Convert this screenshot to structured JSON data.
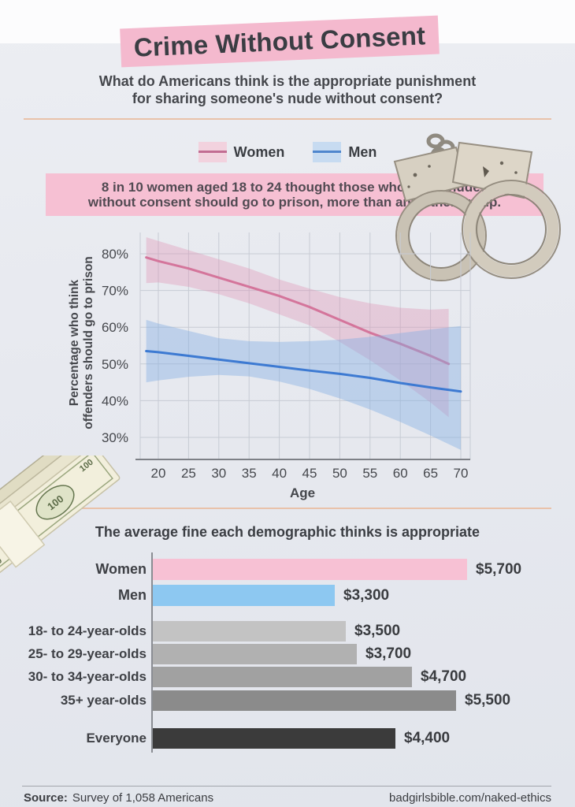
{
  "page": {
    "title": "Crime Without Consent",
    "subtitle_line1": "What do Americans think is the appropriate punishment",
    "subtitle_line2": "for sharing someone's nude without consent?",
    "callout_line1": "8 in 10 women aged 18 to 24 thought those who share nudes",
    "callout_line2": "without consent should go to prison, more than any other group.",
    "footer": {
      "source_label": "Source:",
      "source_text": "Survey of 1,058 Americans",
      "site": "badgirlsbible.com/naked-ethics"
    }
  },
  "colors": {
    "banner_pink": "#f4b9ce",
    "callout_pink": "#f6c0d3",
    "divider_peach": "#e9c2aa",
    "women_line": "#d4759b",
    "men_line": "#3d7ad2",
    "grid": "#c7cbd4",
    "axis": "#7d8086",
    "dark_text": "#3b3e43"
  },
  "legend": {
    "items": [
      {
        "label": "Women",
        "band": "#f2d2de",
        "line": "#c26d92"
      },
      {
        "label": "Men",
        "band": "#c7dbf1",
        "line": "#4f86cd"
      }
    ]
  },
  "chart_data": [
    {
      "type": "line",
      "title": "",
      "xlabel": "Age",
      "ylabel": "Percentage who think offenders should go to prison",
      "ylabel_lines": [
        "Percentage who think",
        "offenders should go to prison"
      ],
      "xlim": [
        17,
        72
      ],
      "ylim": [
        24,
        86
      ],
      "grid": true,
      "legend_position": "top",
      "xticks": [
        20,
        25,
        30,
        35,
        40,
        45,
        50,
        55,
        60,
        65,
        70
      ],
      "xtick_labels": [
        "20",
        "25",
        "30",
        "35",
        "40",
        "45",
        "50",
        "55",
        "60",
        "65",
        "70"
      ],
      "yticks": [
        30,
        40,
        50,
        60,
        70,
        80
      ],
      "ytick_labels": [
        "30%",
        "40%",
        "50%",
        "60%",
        "70%",
        "80%"
      ],
      "series": [
        {
          "name": "Women",
          "color": "#d4759b",
          "band_color": "rgba(224,144,177,0.35)",
          "x": [
            18,
            20,
            25,
            30,
            35,
            40,
            45,
            50,
            55,
            60,
            65,
            68
          ],
          "y": [
            79,
            78,
            76,
            73.5,
            71,
            68.5,
            65.5,
            62,
            58.5,
            55.5,
            52.2,
            50
          ],
          "band_upper": [
            84.5,
            83.5,
            81,
            78.5,
            76,
            73,
            70.5,
            68.2,
            66.5,
            65.3,
            64.8,
            65
          ],
          "band_lower": [
            72,
            72.2,
            71,
            69,
            66.5,
            63.5,
            60.5,
            56,
            51,
            45.5,
            39.5,
            35.5
          ]
        },
        {
          "name": "Men",
          "color": "#3d7ad2",
          "band_color": "rgba(130,175,227,0.42)",
          "x": [
            18,
            20,
            25,
            30,
            35,
            40,
            45,
            50,
            55,
            60,
            65,
            70
          ],
          "y": [
            53.5,
            53.2,
            52.2,
            51.2,
            50.2,
            49.2,
            48.2,
            47.3,
            46.2,
            44.8,
            43.6,
            42.5
          ],
          "band_upper": [
            62,
            61,
            59,
            57,
            56.2,
            56,
            56.2,
            56.6,
            57.4,
            58.4,
            59.4,
            60.3
          ],
          "band_lower": [
            45,
            45.5,
            46.5,
            47,
            46.6,
            45.2,
            43.2,
            40.6,
            37.6,
            34.2,
            30.5,
            26.6
          ]
        }
      ]
    },
    {
      "type": "bar",
      "title": "The average fine each demographic thinks is appropriate",
      "orientation": "horizontal",
      "categories": [
        "Women",
        "Men",
        "18- to 24-year-olds",
        "25- to 29-year-olds",
        "30- to 34-year-olds",
        "35+ year-olds",
        "Everyone"
      ],
      "values": [
        5700,
        3300,
        3500,
        3700,
        4700,
        5500,
        4400
      ],
      "value_labels": [
        "$5,700",
        "$3,300",
        "$3,500",
        "$3,700",
        "$4,700",
        "$5,500",
        "$4,400"
      ],
      "bar_colors": [
        "#f7c1d4",
        "#8dc8f1",
        "#c3c3c3",
        "#b1b1b1",
        "#a1a1a1",
        "#8b8b8b",
        "#3b3b3b"
      ],
      "xlim": [
        0,
        5700
      ],
      "grid": false,
      "legend_position": "none"
    }
  ]
}
